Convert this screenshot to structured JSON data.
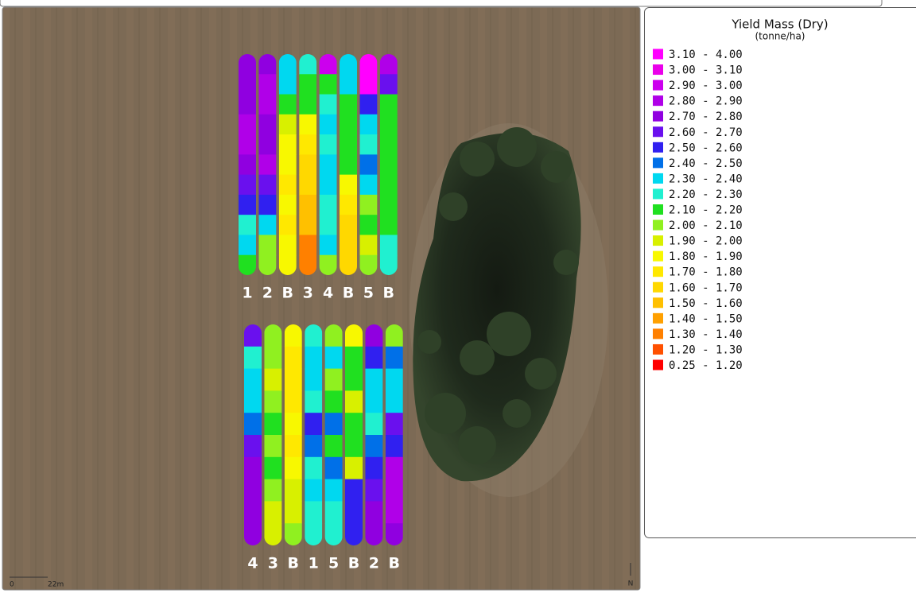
{
  "legend": {
    "title": "Yield Mass (Dry)",
    "subtitle": "(tonne/ha)",
    "items": [
      {
        "label": "3.10 - 4.00",
        "color": "#ff00ff"
      },
      {
        "label": "3.00 - 3.10",
        "color": "#ea00ea"
      },
      {
        "label": "2.90 - 3.00",
        "color": "#cc00ee"
      },
      {
        "label": "2.80 - 2.90",
        "color": "#b000e8"
      },
      {
        "label": "2.70 - 2.80",
        "color": "#9000e0"
      },
      {
        "label": "2.60 - 2.70",
        "color": "#6a10ee"
      },
      {
        "label": "2.50 - 2.60",
        "color": "#3020f0"
      },
      {
        "label": "2.40 - 2.50",
        "color": "#0070e8"
      },
      {
        "label": "2.30 - 2.40",
        "color": "#00d8f0"
      },
      {
        "label": "2.20 - 2.30",
        "color": "#20f0d0"
      },
      {
        "label": "2.10 - 2.20",
        "color": "#20e020"
      },
      {
        "label": "2.00 - 2.10",
        "color": "#90f020"
      },
      {
        "label": "1.90 - 2.00",
        "color": "#d8f000"
      },
      {
        "label": "1.80 - 1.90",
        "color": "#f8f800"
      },
      {
        "label": "1.70 - 1.80",
        "color": "#ffe800"
      },
      {
        "label": "1.60 - 1.70",
        "color": "#ffd800"
      },
      {
        "label": "1.50 - 1.60",
        "color": "#ffc000"
      },
      {
        "label": "1.40 - 1.50",
        "color": "#ffa000"
      },
      {
        "label": "1.30 - 1.40",
        "color": "#ff8000"
      },
      {
        "label": "1.20 - 1.30",
        "color": "#ff5000"
      },
      {
        "label": "0.25 - 1.20",
        "color": "#ff0000"
      }
    ]
  },
  "map": {
    "top_strip_labels": [
      "1",
      "2",
      "B",
      "3",
      "4",
      "B",
      "5",
      "B"
    ],
    "bottom_strip_labels": [
      "4",
      "3",
      "B",
      "1",
      "5",
      "B",
      "2",
      "B"
    ],
    "scale_start": "0",
    "scale_end": "22m",
    "north": "N"
  }
}
